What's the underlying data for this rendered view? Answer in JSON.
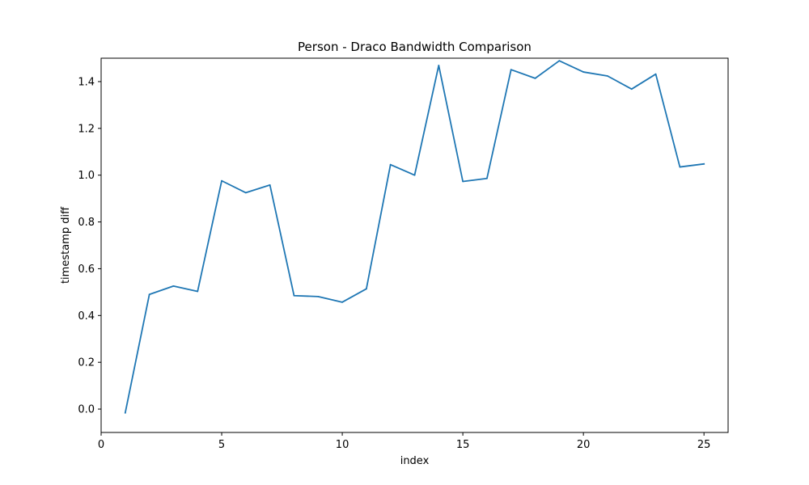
{
  "chart_data": {
    "type": "line",
    "title": "Person - Draco Bandwidth Comparison",
    "xlabel": "index",
    "ylabel": "timestamp diff",
    "xlim": [
      0,
      26
    ],
    "ylim": [
      -0.1,
      1.5
    ],
    "x_ticks": [
      0,
      5,
      10,
      15,
      20,
      25
    ],
    "y_ticks": [
      0.0,
      0.2,
      0.4,
      0.6,
      0.8,
      1.0,
      1.2,
      1.4
    ],
    "x_tick_labels": [
      "0",
      "5",
      "10",
      "15",
      "20",
      "25"
    ],
    "y_tick_labels": [
      "0.0",
      "0.2",
      "0.4",
      "0.6",
      "0.8",
      "1.0",
      "1.2",
      "1.4"
    ],
    "grid": false,
    "series": [
      {
        "color": "#1f77b4",
        "x": [
          1,
          2,
          3,
          4,
          5,
          6,
          7,
          8,
          9,
          10,
          11,
          12,
          13,
          14,
          15,
          16,
          17,
          18,
          19,
          20,
          21,
          22,
          23,
          24,
          25
        ],
        "y": [
          -0.016,
          0.49,
          0.526,
          0.503,
          0.976,
          0.925,
          0.958,
          0.485,
          0.481,
          0.457,
          0.514,
          1.045,
          1.0,
          1.469,
          0.973,
          0.986,
          1.451,
          1.414,
          1.489,
          1.441,
          1.424,
          1.368,
          1.432,
          1.035,
          1.048
        ]
      }
    ]
  }
}
